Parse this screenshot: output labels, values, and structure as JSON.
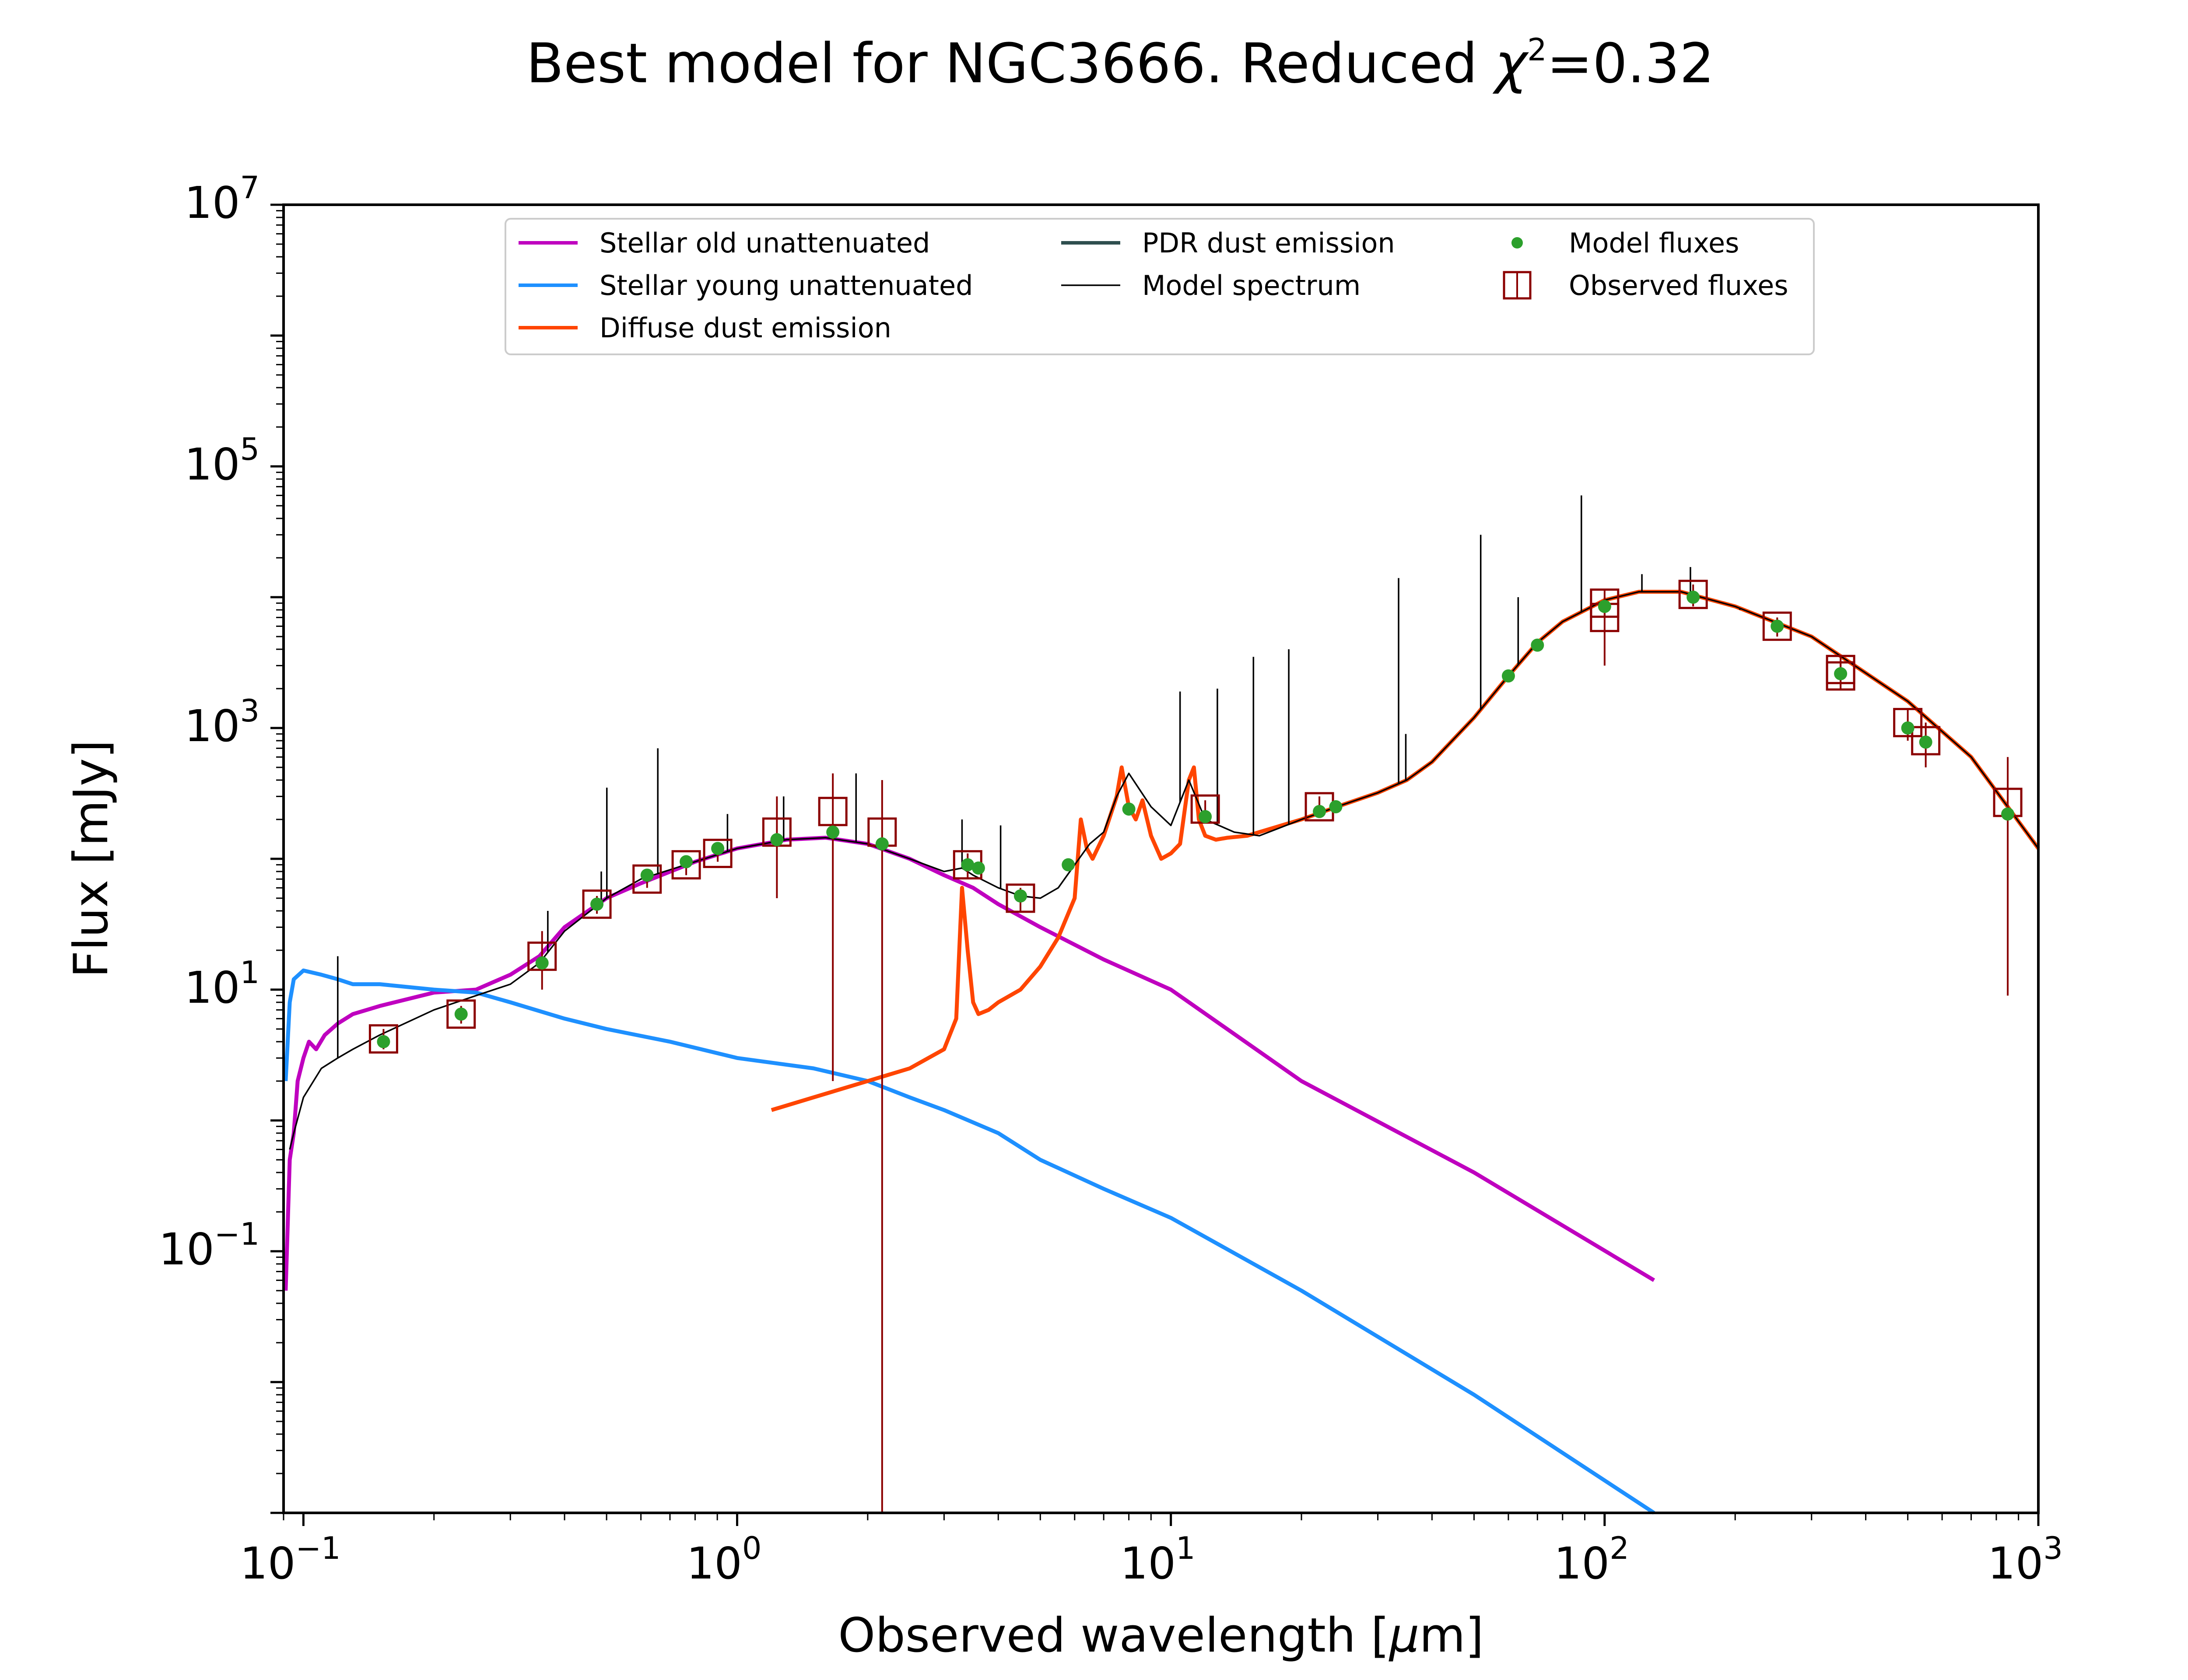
{
  "chart_data": {
    "type": "line",
    "title": "Best model for NGC3666. Reduced χ²=0.32",
    "title_parts": {
      "prefix": "Best model for NGC3666. Reduced ",
      "chi": "χ",
      "sup": "2",
      "suffix": "=0.32"
    },
    "xlabel": "Observed wavelength [μm]",
    "xlabel_parts": {
      "prefix": "Observed wavelength [",
      "mu": "μ",
      "suffix": "m]"
    },
    "ylabel": "Flux [mJy]",
    "xscale": "log",
    "yscale": "log",
    "xlim": [
      0.09,
      1000
    ],
    "ylim": [
      0.001,
      10000000
    ],
    "xticks": [
      {
        "base": "10",
        "exp": "−1",
        "value": 0.1
      },
      {
        "base": "10",
        "exp": "0",
        "value": 1
      },
      {
        "base": "10",
        "exp": "1",
        "value": 10
      },
      {
        "base": "10",
        "exp": "2",
        "value": 100
      },
      {
        "base": "10",
        "exp": "3",
        "value": 1000
      }
    ],
    "yticks": [
      {
        "base": "10",
        "exp": "−1",
        "value": 0.1
      },
      {
        "base": "10",
        "exp": "1",
        "value": 10
      },
      {
        "base": "10",
        "exp": "3",
        "value": 1000
      },
      {
        "base": "10",
        "exp": "5",
        "value": 100000
      },
      {
        "base": "10",
        "exp": "7",
        "value": 10000000
      }
    ],
    "legend_position": "top",
    "legend": [
      {
        "label": "Stellar old unattenuated",
        "color": "#bf00bf",
        "marker": "line"
      },
      {
        "label": "Stellar young unattenuated",
        "color": "#1e90ff",
        "marker": "line"
      },
      {
        "label": "Diffuse dust emission",
        "color": "#ff4500",
        "marker": "line"
      },
      {
        "label": "PDR dust emission",
        "color": "#2f4f4f",
        "marker": "line"
      },
      {
        "label": "Model spectrum",
        "color": "#000000",
        "marker": "thin-line"
      },
      {
        "label": "Model fluxes",
        "color": "#2ca02c",
        "marker": "dot"
      },
      {
        "label": "Observed fluxes",
        "color": "#8b0000",
        "marker": "open-square"
      }
    ],
    "series": [
      {
        "name": "Stellar old unattenuated",
        "color": "#bf00bf",
        "x": [
          0.091,
          0.093,
          0.095,
          0.097,
          0.1,
          0.103,
          0.107,
          0.112,
          0.12,
          0.13,
          0.15,
          0.2,
          0.25,
          0.3,
          0.35,
          0.4,
          0.5,
          0.6,
          0.8,
          1.0,
          1.3,
          1.6,
          2.0,
          2.5,
          3.0,
          3.5,
          4.0,
          5.0,
          7.0,
          10.0,
          20.0,
          50.0,
          130.0
        ],
        "y": [
          0.05,
          0.5,
          0.8,
          2.0,
          3.0,
          4.0,
          3.5,
          4.5,
          5.5,
          6.5,
          7.5,
          9.5,
          10.0,
          13.0,
          18.0,
          30.0,
          50.0,
          65.0,
          95.0,
          120.0,
          140.0,
          145.0,
          130.0,
          100.0,
          75.0,
          60.0,
          45.0,
          30.0,
          17.0,
          10.0,
          2.0,
          0.4,
          0.06
        ]
      },
      {
        "name": "Stellar young unattenuated",
        "color": "#1e90ff",
        "x": [
          0.091,
          0.093,
          0.095,
          0.1,
          0.11,
          0.12,
          0.13,
          0.15,
          0.2,
          0.25,
          0.3,
          0.4,
          0.5,
          0.7,
          1.0,
          1.5,
          2.0,
          2.5,
          3.0,
          4.0,
          5.0,
          7.0,
          10.0,
          20.0,
          50.0,
          130.0
        ],
        "y": [
          2.0,
          8.0,
          12.0,
          14.0,
          13.0,
          12.0,
          11.0,
          11.0,
          10.0,
          9.5,
          8.0,
          6.0,
          5.0,
          4.0,
          3.0,
          2.5,
          2.0,
          1.5,
          1.2,
          0.8,
          0.5,
          0.3,
          0.18,
          0.05,
          0.008,
          0.001
        ]
      },
      {
        "name": "Diffuse dust emission",
        "color": "#ff4500",
        "x": [
          1.2,
          1.5,
          2.0,
          2.5,
          3.0,
          3.2,
          3.3,
          3.4,
          3.5,
          3.6,
          3.8,
          4.0,
          4.5,
          5.0,
          5.5,
          6.0,
          6.2,
          6.4,
          6.6,
          7.0,
          7.5,
          7.7,
          8.0,
          8.3,
          8.6,
          9.0,
          9.5,
          10.0,
          10.5,
          11.0,
          11.3,
          11.6,
          12.0,
          12.7,
          13.5,
          15.0,
          17.0,
          20.0,
          25.0,
          30.0,
          35.0,
          40.0,
          50.0,
          60.0,
          70.0,
          80.0,
          100.0,
          120.0,
          150.0,
          200.0,
          300.0,
          500.0,
          700.0,
          1000.0
        ],
        "y": [
          1.2,
          1.5,
          2.0,
          2.5,
          3.5,
          6.0,
          60.0,
          20.0,
          8.0,
          6.5,
          7.0,
          8.0,
          10.0,
          15.0,
          25.0,
          50.0,
          200.0,
          120.0,
          100.0,
          150.0,
          300.0,
          500.0,
          250.0,
          200.0,
          280.0,
          150.0,
          100.0,
          110.0,
          130.0,
          400.0,
          500.0,
          200.0,
          150.0,
          140.0,
          145.0,
          150.0,
          170.0,
          200.0,
          260.0,
          320.0,
          400.0,
          550.0,
          1200.0,
          2500.0,
          4500.0,
          6500.0,
          9500.0,
          11000.0,
          11000.0,
          8500.0,
          5000.0,
          1600.0,
          600.0,
          120.0
        ]
      },
      {
        "name": "Model spectrum",
        "color": "#000000",
        "x": [
          0.093,
          0.095,
          0.1,
          0.11,
          0.12,
          0.13,
          0.15,
          0.2,
          0.25,
          0.3,
          0.35,
          0.4,
          0.5,
          0.6,
          0.8,
          1.0,
          1.3,
          1.6,
          2.0,
          2.5,
          3.0,
          3.3,
          3.5,
          4.0,
          4.5,
          5.0,
          5.5,
          6.0,
          6.5,
          7.0,
          7.5,
          8.0,
          9.0,
          10.0,
          11.0,
          12.0,
          14.0,
          16.0,
          20.0,
          25.0,
          30.0,
          35.0,
          40.0,
          50.0,
          60.0,
          70.0,
          80.0,
          100.0,
          120.0,
          150.0,
          200.0,
          300.0,
          500.0,
          700.0,
          1000.0
        ],
        "y": [
          0.6,
          0.8,
          1.5,
          2.5,
          3.0,
          3.5,
          4.5,
          7.0,
          9.0,
          11.0,
          16.0,
          28.0,
          50.0,
          70.0,
          95.0,
          120.0,
          140.0,
          145.0,
          130.0,
          100.0,
          80.0,
          85.0,
          75.0,
          60.0,
          52.0,
          50.0,
          60.0,
          90.0,
          130.0,
          160.0,
          300.0,
          450.0,
          250.0,
          180.0,
          400.0,
          200.0,
          160.0,
          150.0,
          200.0,
          260.0,
          320.0,
          400.0,
          550.0,
          1200.0,
          2500.0,
          4500.0,
          6500.0,
          9500.0,
          11000.0,
          11000.0,
          8500.0,
          5000.0,
          1600.0,
          600.0,
          120.0
        ]
      }
    ],
    "emission_lines": [
      {
        "x": 0.12,
        "y_top": 18
      },
      {
        "x": 0.366,
        "y_top": 40
      },
      {
        "x": 0.4861,
        "y_top": 80
      },
      {
        "x": 0.5007,
        "y_top": 350
      },
      {
        "x": 0.6563,
        "y_top": 700
      },
      {
        "x": 0.95,
        "y_top": 220
      },
      {
        "x": 1.28,
        "y_top": 300
      },
      {
        "x": 1.88,
        "y_top": 450
      },
      {
        "x": 3.3,
        "y_top": 200
      },
      {
        "x": 4.05,
        "y_top": 180
      },
      {
        "x": 10.5,
        "y_top": 1900
      },
      {
        "x": 12.8,
        "y_top": 2000
      },
      {
        "x": 15.5,
        "y_top": 3500
      },
      {
        "x": 18.7,
        "y_top": 4000
      },
      {
        "x": 33.5,
        "y_top": 14000
      },
      {
        "x": 34.8,
        "y_top": 900
      },
      {
        "x": 51.8,
        "y_top": 30000
      },
      {
        "x": 63.2,
        "y_top": 10000
      },
      {
        "x": 88.4,
        "y_top": 60000
      },
      {
        "x": 121.9,
        "y_top": 15000
      },
      {
        "x": 157.7,
        "y_top": 17000
      },
      {
        "x": 205.0,
        "y_top": 8000
      }
    ],
    "model_fluxes": {
      "x": [
        0.153,
        0.231,
        0.355,
        0.475,
        0.62,
        0.763,
        0.902,
        1.235,
        1.662,
        2.159,
        3.4,
        3.6,
        4.5,
        5.8,
        8.0,
        12.0,
        22.0,
        24.0,
        60.0,
        70.0,
        100.0,
        160.0,
        250.0,
        350.0,
        500.0,
        550.0,
        850.0
      ],
      "y": [
        4.0,
        6.5,
        16.0,
        45.0,
        75.0,
        95.0,
        120.0,
        140.0,
        160.0,
        130.0,
        90.0,
        85.0,
        52.0,
        90.0,
        240.0,
        210.0,
        230.0,
        250.0,
        2500.0,
        4300.0,
        8500.0,
        10000.0,
        6000.0,
        2600.0,
        1000.0,
        780.0,
        220.0
      ]
    },
    "observed_fluxes": {
      "x": [
        0.153,
        0.231,
        0.355,
        0.475,
        0.62,
        0.763,
        0.902,
        1.235,
        1.662,
        2.159,
        3.4,
        4.5,
        12.0,
        22.0,
        100.0,
        100.0,
        160.0,
        250.0,
        350.0,
        350.0,
        500.0,
        550.0,
        850.0
      ],
      "y": [
        4.2,
        6.5,
        18.0,
        45.0,
        70.0,
        90.0,
        110.0,
        160.0,
        230.0,
        160.0,
        90.0,
        50.0,
        240.0,
        250.0,
        7000.0,
        9000.0,
        10500.0,
        6000.0,
        2800.0,
        2500.0,
        1100.0,
        800.0,
        270.0
      ],
      "err_low": [
        3.5,
        5.5,
        10.0,
        38.0,
        60.0,
        75.0,
        95.0,
        50.0,
        2.0,
        0.001,
        70.0,
        40.0,
        200.0,
        210.0,
        3000.0,
        7000.0,
        8500.0,
        5000.0,
        2000.0,
        2000.0,
        800.0,
        500.0,
        9.0
      ],
      "err_high": [
        5.0,
        7.5,
        28.0,
        52.0,
        80.0,
        105.0,
        125.0,
        300.0,
        450.0,
        400.0,
        110.0,
        60.0,
        280.0,
        300.0,
        10000.0,
        11500.0,
        12500.0,
        7000.0,
        3500.0,
        3200.0,
        1400.0,
        1100.0,
        600.0
      ]
    }
  }
}
